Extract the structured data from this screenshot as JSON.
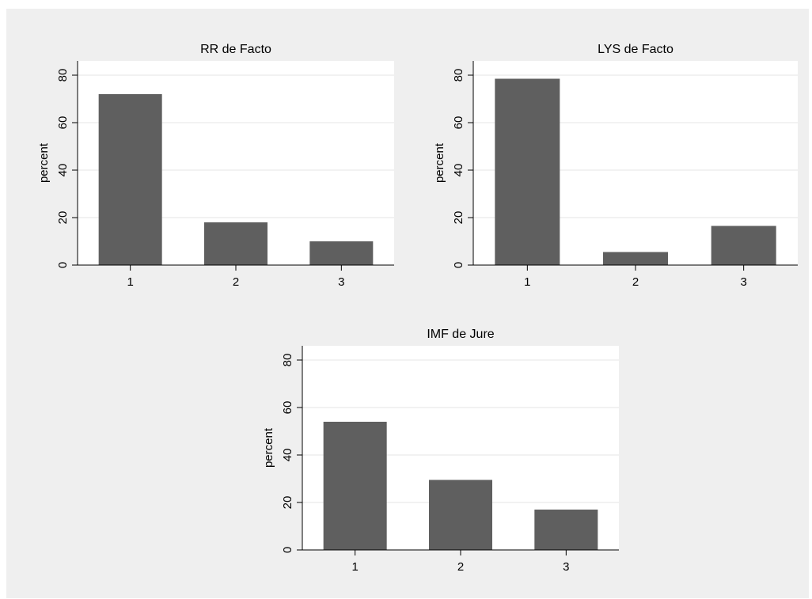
{
  "colors": {
    "figure_bg": "#efefef",
    "plot_bg": "#ffffff",
    "bar": "#5f5f5f",
    "grid": "#e6e6e6",
    "axis": "#000000"
  },
  "chart_data": [
    {
      "type": "bar",
      "title": "RR de Facto",
      "xlabel": "",
      "ylabel": "percent",
      "categories": [
        "1",
        "2",
        "3"
      ],
      "values": [
        72,
        18,
        10
      ],
      "ylim": [
        0,
        86
      ],
      "yticks": [
        "0",
        "20",
        "40",
        "60",
        "80"
      ],
      "grid": true
    },
    {
      "type": "bar",
      "title": "LYS de Facto",
      "xlabel": "",
      "ylabel": "percent",
      "categories": [
        "1",
        "2",
        "3"
      ],
      "values": [
        78.5,
        5.5,
        16.5
      ],
      "ylim": [
        0,
        86
      ],
      "yticks": [
        "0",
        "20",
        "40",
        "60",
        "80"
      ],
      "grid": true
    },
    {
      "type": "bar",
      "title": "IMF de Jure",
      "xlabel": "",
      "ylabel": "percent",
      "categories": [
        "1",
        "2",
        "3"
      ],
      "values": [
        54,
        29.5,
        17
      ],
      "ylim": [
        0,
        86
      ],
      "yticks": [
        "0",
        "20",
        "40",
        "60",
        "80"
      ],
      "grid": true
    }
  ]
}
